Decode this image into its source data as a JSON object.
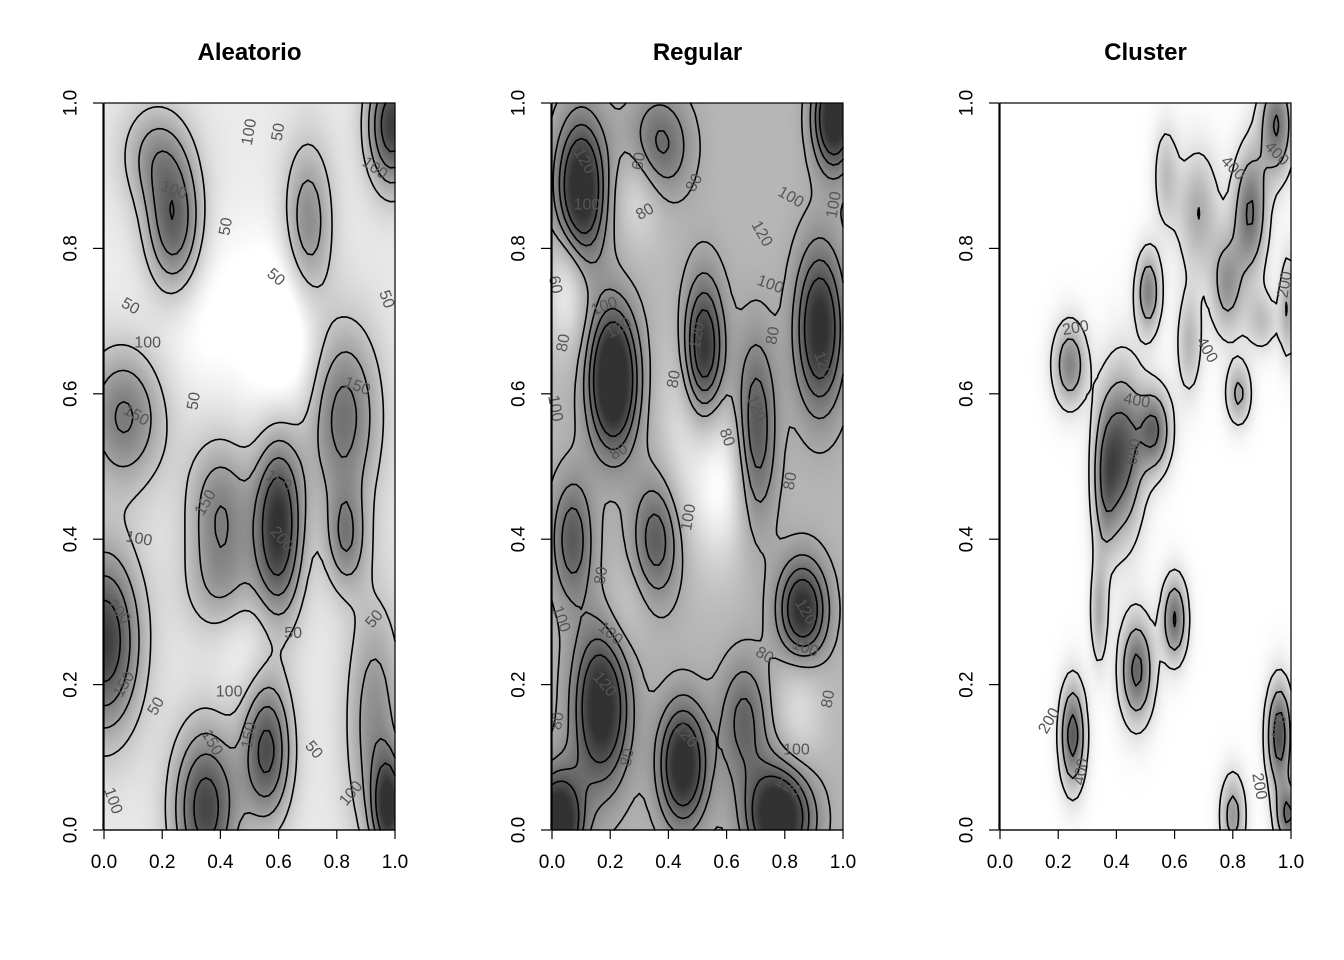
{
  "chart_data": [
    {
      "type": "heatmap",
      "title": "Aleatorio",
      "xlim": [
        0,
        1
      ],
      "ylim": [
        0,
        1
      ],
      "x_ticks": [
        "0.0",
        "0.2",
        "0.4",
        "0.6",
        "0.8",
        "1.0"
      ],
      "y_ticks": [
        "0.0",
        "0.2",
        "0.4",
        "0.6",
        "0.8",
        "1.0"
      ],
      "contour_levels": [
        50,
        100,
        150,
        200
      ],
      "contour_labels": [
        {
          "text": "100",
          "x": 0.5,
          "y": 0.96,
          "angle": -80
        },
        {
          "text": "50",
          "x": 0.6,
          "y": 0.96,
          "angle": -80
        },
        {
          "text": "100",
          "x": 0.93,
          "y": 0.91,
          "angle": 35
        },
        {
          "text": "100",
          "x": 0.24,
          "y": 0.88,
          "angle": 20
        },
        {
          "text": "50",
          "x": 0.42,
          "y": 0.83,
          "angle": -80
        },
        {
          "text": "50",
          "x": 0.59,
          "y": 0.76,
          "angle": 40
        },
        {
          "text": "50",
          "x": 0.09,
          "y": 0.72,
          "angle": 30
        },
        {
          "text": "50",
          "x": 0.97,
          "y": 0.73,
          "angle": 70
        },
        {
          "text": "100",
          "x": 0.15,
          "y": 0.67,
          "angle": 0
        },
        {
          "text": "150",
          "x": 0.87,
          "y": 0.61,
          "angle": 20
        },
        {
          "text": "50",
          "x": 0.31,
          "y": 0.59,
          "angle": -80
        },
        {
          "text": "150",
          "x": 0.11,
          "y": 0.57,
          "angle": 30
        },
        {
          "text": "150",
          "x": 0.6,
          "y": 0.48,
          "angle": 30
        },
        {
          "text": "150",
          "x": 0.35,
          "y": 0.45,
          "angle": -60
        },
        {
          "text": "200",
          "x": 0.61,
          "y": 0.4,
          "angle": 50
        },
        {
          "text": "100",
          "x": 0.12,
          "y": 0.4,
          "angle": 10
        },
        {
          "text": "200",
          "x": 0.05,
          "y": 0.3,
          "angle": 50
        },
        {
          "text": "50",
          "x": 0.65,
          "y": 0.27,
          "angle": 0
        },
        {
          "text": "50",
          "x": 0.93,
          "y": 0.29,
          "angle": -50
        },
        {
          "text": "150",
          "x": 0.07,
          "y": 0.2,
          "angle": -60
        },
        {
          "text": "100",
          "x": 0.43,
          "y": 0.19,
          "angle": 0
        },
        {
          "text": "50",
          "x": 0.18,
          "y": 0.17,
          "angle": -60
        },
        {
          "text": "150",
          "x": 0.5,
          "y": 0.13,
          "angle": -80
        },
        {
          "text": "150",
          "x": 0.37,
          "y": 0.12,
          "angle": 60
        },
        {
          "text": "50",
          "x": 0.72,
          "y": 0.11,
          "angle": 50
        },
        {
          "text": "100",
          "x": 0.85,
          "y": 0.05,
          "angle": -50
        },
        {
          "text": "100",
          "x": 0.03,
          "y": 0.04,
          "angle": 70
        }
      ]
    },
    {
      "type": "heatmap",
      "title": "Regular",
      "xlim": [
        0,
        1
      ],
      "ylim": [
        0,
        1
      ],
      "x_ticks": [
        "0.0",
        "0.2",
        "0.4",
        "0.6",
        "0.8",
        "1.0"
      ],
      "y_ticks": [
        "0.0",
        "0.2",
        "0.4",
        "0.6",
        "0.8",
        "1.0"
      ],
      "contour_levels": [
        60,
        80,
        100,
        120
      ],
      "contour_labels": [
        {
          "text": "120",
          "x": 0.11,
          "y": 0.92,
          "angle": 60
        },
        {
          "text": "60",
          "x": 0.3,
          "y": 0.92,
          "angle": -80
        },
        {
          "text": "100",
          "x": 0.12,
          "y": 0.86,
          "angle": 0
        },
        {
          "text": "80",
          "x": 0.49,
          "y": 0.89,
          "angle": -60
        },
        {
          "text": "100",
          "x": 0.82,
          "y": 0.87,
          "angle": 30
        },
        {
          "text": "100",
          "x": 0.97,
          "y": 0.86,
          "angle": -80
        },
        {
          "text": "80",
          "x": 0.32,
          "y": 0.85,
          "angle": -30
        },
        {
          "text": "120",
          "x": 0.72,
          "y": 0.82,
          "angle": 60
        },
        {
          "text": "100",
          "x": 0.75,
          "y": 0.75,
          "angle": 20
        },
        {
          "text": "60",
          "x": 0.01,
          "y": 0.75,
          "angle": 80
        },
        {
          "text": "100",
          "x": 0.18,
          "y": 0.72,
          "angle": -20
        },
        {
          "text": "120",
          "x": 0.23,
          "y": 0.69,
          "angle": -30
        },
        {
          "text": "80",
          "x": 0.04,
          "y": 0.67,
          "angle": -80
        },
        {
          "text": "120",
          "x": 0.5,
          "y": 0.68,
          "angle": -80
        },
        {
          "text": "80",
          "x": 0.76,
          "y": 0.68,
          "angle": -80
        },
        {
          "text": "120",
          "x": 0.93,
          "y": 0.64,
          "angle": 70
        },
        {
          "text": "80",
          "x": 0.42,
          "y": 0.62,
          "angle": -80
        },
        {
          "text": "100",
          "x": 0.01,
          "y": 0.58,
          "angle": 80
        },
        {
          "text": "120",
          "x": 0.7,
          "y": 0.58,
          "angle": 70
        },
        {
          "text": "80",
          "x": 0.6,
          "y": 0.54,
          "angle": 70
        },
        {
          "text": "80",
          "x": 0.23,
          "y": 0.52,
          "angle": -30
        },
        {
          "text": "80",
          "x": 0.82,
          "y": 0.48,
          "angle": -80
        },
        {
          "text": "100",
          "x": 0.47,
          "y": 0.43,
          "angle": -80
        },
        {
          "text": "80",
          "x": 0.17,
          "y": 0.35,
          "angle": -80
        },
        {
          "text": "100",
          "x": 0.03,
          "y": 0.29,
          "angle": 70
        },
        {
          "text": "120",
          "x": 0.87,
          "y": 0.3,
          "angle": 60
        },
        {
          "text": "100",
          "x": 0.2,
          "y": 0.27,
          "angle": 40
        },
        {
          "text": "100",
          "x": 0.87,
          "y": 0.25,
          "angle": 20
        },
        {
          "text": "80",
          "x": 0.73,
          "y": 0.24,
          "angle": 30
        },
        {
          "text": "120",
          "x": 0.18,
          "y": 0.2,
          "angle": 50
        },
        {
          "text": "80",
          "x": 0.95,
          "y": 0.18,
          "angle": -80
        },
        {
          "text": "80",
          "x": 0.02,
          "y": 0.15,
          "angle": -80
        },
        {
          "text": "120",
          "x": 0.46,
          "y": 0.13,
          "angle": 50
        },
        {
          "text": "100",
          "x": 0.84,
          "y": 0.11,
          "angle": 0
        },
        {
          "text": "80",
          "x": 0.26,
          "y": 0.1,
          "angle": -80
        },
        {
          "text": "120",
          "x": 0.81,
          "y": 0.06,
          "angle": 30
        }
      ]
    },
    {
      "type": "heatmap",
      "title": "Cluster",
      "xlim": [
        0,
        1
      ],
      "ylim": [
        0,
        1
      ],
      "x_ticks": [
        "0.0",
        "0.2",
        "0.4",
        "0.6",
        "0.8",
        "1.0"
      ],
      "y_ticks": [
        "0.0",
        "0.2",
        "0.4",
        "0.6",
        "0.8",
        "1.0"
      ],
      "contour_levels": [
        200,
        400,
        600
      ],
      "contour_labels": [
        {
          "text": "400",
          "x": 0.8,
          "y": 0.91,
          "angle": 45
        },
        {
          "text": "400",
          "x": 0.95,
          "y": 0.93,
          "angle": 45
        },
        {
          "text": "200",
          "x": 0.98,
          "y": 0.75,
          "angle": -80
        },
        {
          "text": "200",
          "x": 0.26,
          "y": 0.69,
          "angle": -10
        },
        {
          "text": "400",
          "x": 0.71,
          "y": 0.66,
          "angle": 60
        },
        {
          "text": "400",
          "x": 0.47,
          "y": 0.59,
          "angle": 10
        },
        {
          "text": "600",
          "x": 0.46,
          "y": 0.52,
          "angle": -80
        },
        {
          "text": "200",
          "x": 0.17,
          "y": 0.15,
          "angle": -60
        },
        {
          "text": "400",
          "x": 0.28,
          "y": 0.08,
          "angle": -80
        },
        {
          "text": "400",
          "x": 0.96,
          "y": 0.14,
          "angle": -80
        },
        {
          "text": "200",
          "x": 0.89,
          "y": 0.06,
          "angle": 80
        }
      ]
    }
  ]
}
